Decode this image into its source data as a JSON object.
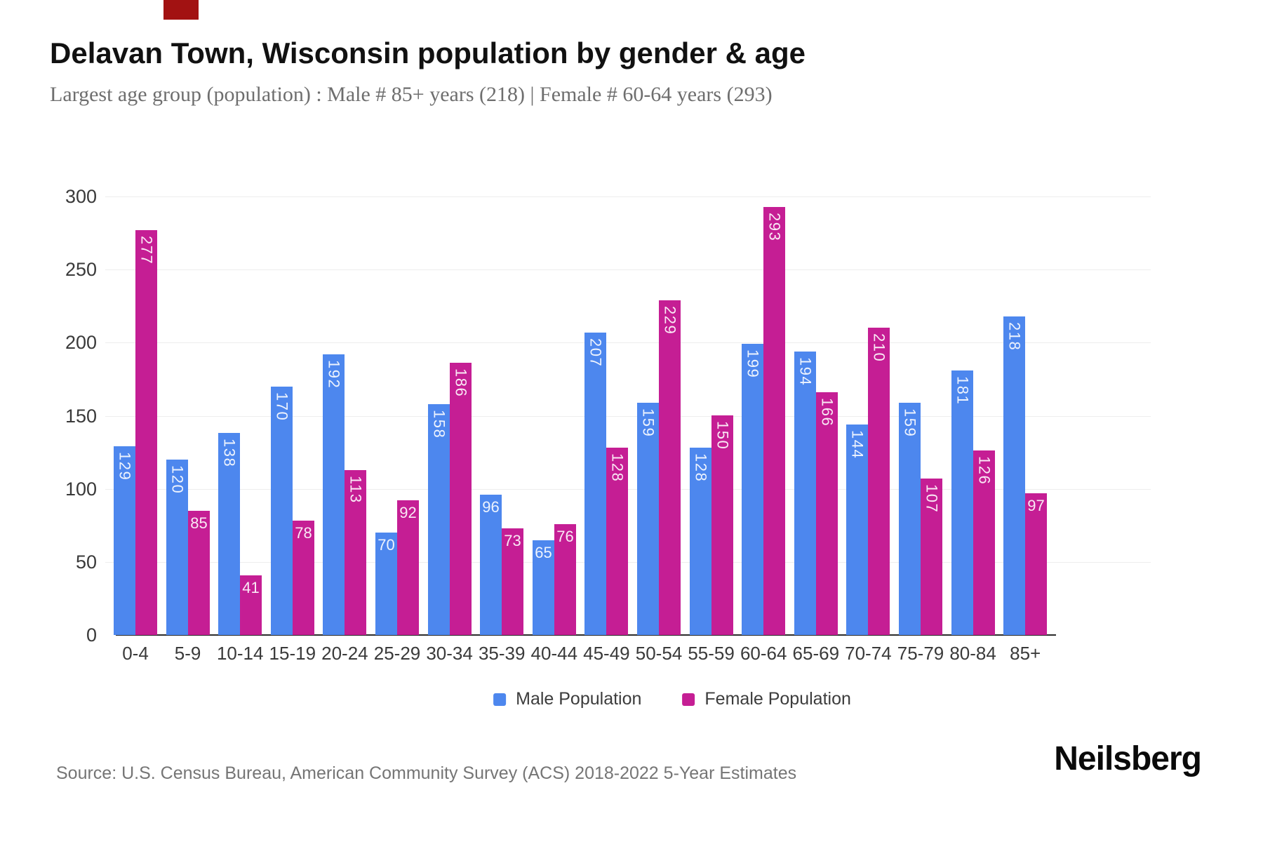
{
  "page": {
    "title": "Delavan Town, Wisconsin population by gender & age",
    "subtitle": "Largest age group (population) : Male # 85+ years (218) | Female # 60-64 years (293)",
    "source": "Source: U.S. Census Bureau, American Community Survey (ACS) 2018-2022 5-Year Estimates",
    "brand": "Neilsberg"
  },
  "colors": {
    "male": "#4d87ee",
    "female": "#c51e94",
    "grid": "#ededed",
    "axis_line": "#2b2b2b",
    "tick_text": "#3a3a3a",
    "muted_text": "#757575"
  },
  "chart_data": {
    "type": "bar",
    "title": "Delavan Town, Wisconsin population by gender & age",
    "xlabel": "",
    "ylabel": "",
    "ylim": [
      0,
      300
    ],
    "yticks": [
      0,
      50,
      100,
      150,
      200,
      250,
      300
    ],
    "grid": true,
    "legend_position": "bottom",
    "categories": [
      "0-4",
      "5-9",
      "10-14",
      "15-19",
      "20-24",
      "25-29",
      "30-34",
      "35-39",
      "40-44",
      "45-49",
      "50-54",
      "55-59",
      "60-64",
      "65-69",
      "70-74",
      "75-79",
      "80-84",
      "85+"
    ],
    "series": [
      {
        "name": "Male Population",
        "color_key": "male",
        "values": [
          129,
          120,
          138,
          170,
          192,
          70,
          158,
          96,
          65,
          207,
          159,
          128,
          199,
          194,
          144,
          159,
          181,
          218
        ]
      },
      {
        "name": "Female Population",
        "color_key": "female",
        "values": [
          277,
          85,
          41,
          78,
          113,
          92,
          186,
          73,
          76,
          128,
          229,
          150,
          293,
          166,
          210,
          107,
          126,
          97
        ]
      }
    ]
  }
}
